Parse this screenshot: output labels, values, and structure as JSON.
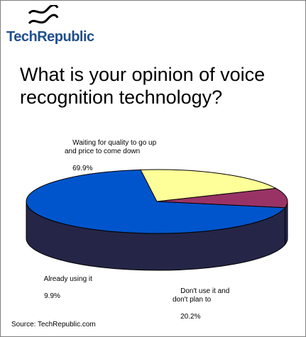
{
  "brand": {
    "name": "TechRepublic"
  },
  "chart_data": {
    "type": "pie",
    "title": "What is your opinion of voice recognition technology?",
    "slices": [
      {
        "label": "Waiting for quality to go up\nand price to come down",
        "value": 69.9,
        "value_label": "69.9%",
        "color": "#0055cc",
        "side_color": "#252547"
      },
      {
        "label": "Don't use it and\ndon't plan to",
        "value": 20.2,
        "value_label": "20.2%",
        "color": "#ffff99",
        "side_color": "#7f7f5a"
      },
      {
        "label": "Already using it",
        "value": 9.9,
        "value_label": "9.9%",
        "color": "#993366",
        "side_color": "#252547"
      }
    ],
    "style": "3d-pie"
  },
  "source": "Source: TechRepublic.com"
}
